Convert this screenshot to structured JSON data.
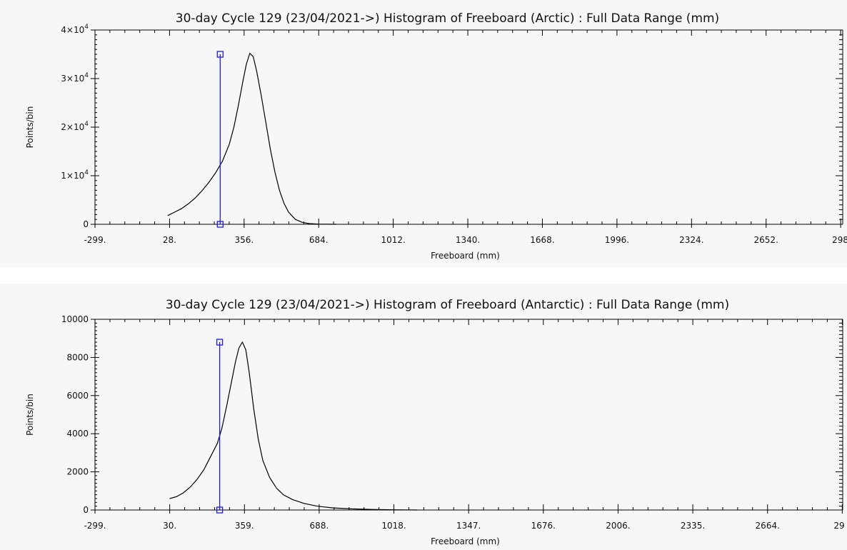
{
  "chart_data": [
    {
      "type": "line",
      "title": "30-day Cycle 129 (23/04/2021->) Histogram of Freeboard (Arctic) :  Full Data Range (mm)",
      "xlabel": "Freeboard (mm)",
      "ylabel": "Points/bin",
      "xlim": [
        -299,
        2980
      ],
      "ylim": [
        0,
        40000
      ],
      "x_ticks": [
        "-299.",
        "28.",
        "356.",
        "684.",
        "1012.",
        "1340.",
        "1668.",
        "1996.",
        "2324.",
        "2652.",
        "298"
      ],
      "y_ticks": [
        {
          "value": 0,
          "base": "0",
          "exp": ""
        },
        {
          "value": 10000,
          "base": "1×10",
          "exp": "4"
        },
        {
          "value": 20000,
          "base": "2×10",
          "exp": "4"
        },
        {
          "value": 30000,
          "base": "3×10",
          "exp": "4"
        },
        {
          "value": 40000,
          "base": "4×10",
          "exp": "4"
        }
      ],
      "series": [
        {
          "color": "#000000",
          "x": [
            20,
            50,
            80,
            110,
            140,
            170,
            200,
            230,
            260,
            290,
            310,
            330,
            350,
            365,
            380,
            395,
            410,
            430,
            450,
            470,
            490,
            510,
            530,
            550,
            580,
            610,
            640,
            680,
            720,
            760
          ],
          "y": [
            1800,
            2500,
            3200,
            4200,
            5400,
            6900,
            8600,
            10600,
            13000,
            16500,
            20000,
            24500,
            29500,
            33000,
            35200,
            34500,
            31500,
            26500,
            21000,
            15500,
            10800,
            7000,
            4300,
            2500,
            1000,
            400,
            150,
            50,
            15,
            0
          ]
        }
      ],
      "marker": {
        "x": 250,
        "y_top": 35000,
        "y_bottom": 0,
        "color": "#1a1aff"
      },
      "grid": false,
      "plot_bg": "#f7f7f7"
    },
    {
      "type": "line",
      "title": "30-day Cycle 129 (23/04/2021->) Histogram of Freeboard (Antarctic) :  Full Data Range (mm)",
      "xlabel": "Freeboard (mm)",
      "ylabel": "Points/bin",
      "xlim": [
        -299,
        2993
      ],
      "ylim": [
        0,
        10000
      ],
      "x_ticks": [
        "-299.",
        "30.",
        "359.",
        "688.",
        "1018.",
        "1347.",
        "1676.",
        "2006.",
        "2335.",
        "2664.",
        "29"
      ],
      "y_ticks": [
        {
          "value": 0,
          "base": "0",
          "exp": ""
        },
        {
          "value": 2000,
          "base": "2000",
          "exp": ""
        },
        {
          "value": 4000,
          "base": "4000",
          "exp": ""
        },
        {
          "value": 6000,
          "base": "6000",
          "exp": ""
        },
        {
          "value": 8000,
          "base": "8000",
          "exp": ""
        },
        {
          "value": 10000,
          "base": "10000",
          "exp": ""
        }
      ],
      "series": [
        {
          "color": "#000000",
          "x": [
            30,
            60,
            90,
            120,
            150,
            180,
            210,
            240,
            260,
            280,
            300,
            320,
            335,
            350,
            365,
            380,
            400,
            420,
            440,
            470,
            500,
            530,
            570,
            620,
            680,
            750,
            830,
            920,
            1020,
            1120
          ],
          "y": [
            600,
            700,
            900,
            1200,
            1600,
            2100,
            2800,
            3500,
            4300,
            5400,
            6600,
            7800,
            8500,
            8800,
            8400,
            7200,
            5300,
            3700,
            2600,
            1700,
            1150,
            800,
            550,
            350,
            200,
            110,
            60,
            30,
            12,
            0
          ]
        }
      ],
      "marker": {
        "x": 250,
        "y_top": 8800,
        "y_bottom": 0,
        "color": "#1a1aff"
      },
      "grid": false,
      "plot_bg": "#f7f7f7"
    }
  ]
}
